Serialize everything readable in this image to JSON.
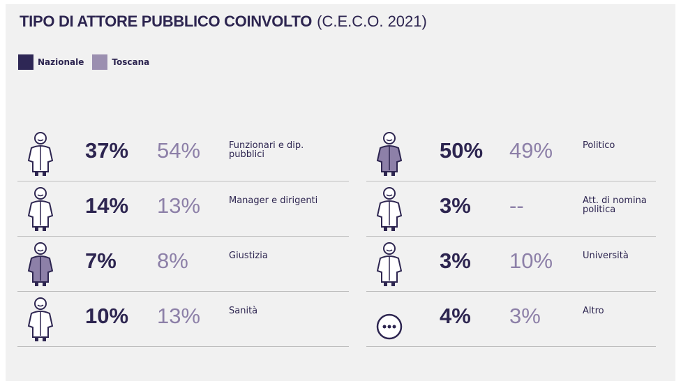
{
  "title": "TIPO DI ATTORE PUBBLICO COINVOLTO",
  "subtitle": "(C.E.C.O. 2021)",
  "legend": [
    "Nazionale",
    "Toscana"
  ],
  "items": [
    {
      "label": "Funzionari e dip. pubblici",
      "nazionale": "37%",
      "toscana": "54%"
    },
    {
      "label": "Manager e dirigenti",
      "nazionale": "14%",
      "toscana": "13%"
    },
    {
      "label": "Giustizia",
      "nazionale": "7%",
      "toscana": "8%"
    },
    {
      "label": "Sanità",
      "nazionale": "10%",
      "toscana": "13%"
    },
    {
      "label": "Politico",
      "nazionale": "50%",
      "toscana": "49%"
    },
    {
      "label": "Att. di nomina politica",
      "nazionale": "3%",
      "toscana": "--"
    },
    {
      "label": "Università",
      "nazionale": "3%",
      "toscana": "10%"
    },
    {
      "label": "Altro",
      "nazionale": "4%",
      "toscana": "3%"
    }
  ]
}
